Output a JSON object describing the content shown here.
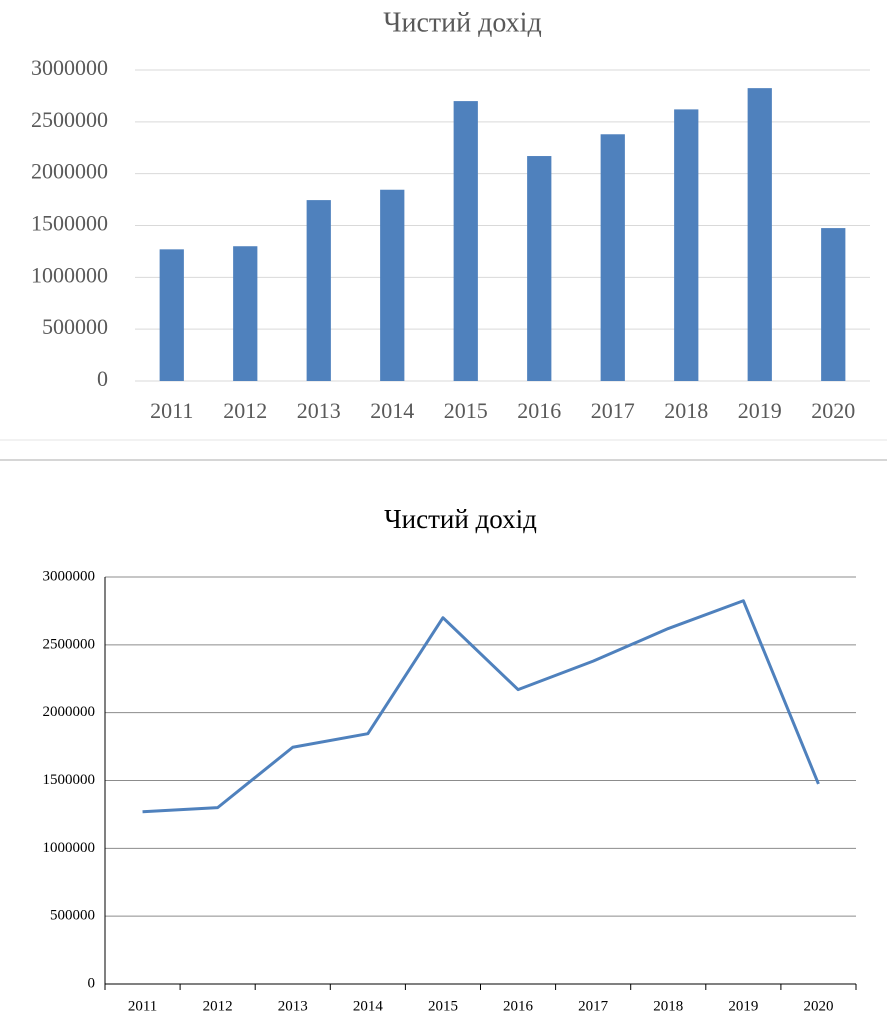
{
  "chart_data": [
    {
      "type": "bar",
      "title": "Чистий дохід",
      "categories": [
        "2011",
        "2012",
        "2013",
        "2014",
        "2015",
        "2016",
        "2017",
        "2018",
        "2019",
        "2020"
      ],
      "values": [
        1270000,
        1300000,
        1745000,
        1845000,
        2700000,
        2170000,
        2380000,
        2620000,
        2825000,
        1475000
      ],
      "color": "#4f81bd",
      "ylim": [
        0,
        3000000
      ],
      "yticks": [
        0,
        500000,
        1000000,
        1500000,
        2000000,
        2500000,
        3000000
      ],
      "grid": true
    },
    {
      "type": "line",
      "title": "Чистий дохід",
      "categories": [
        "2011",
        "2012",
        "2013",
        "2014",
        "2015",
        "2016",
        "2017",
        "2018",
        "2019",
        "2020"
      ],
      "values": [
        1270000,
        1300000,
        1745000,
        1845000,
        2700000,
        2170000,
        2380000,
        2620000,
        2825000,
        1475000
      ],
      "color": "#4f81bd",
      "ylim": [
        0,
        3000000
      ],
      "yticks": [
        0,
        500000,
        1000000,
        1500000,
        2000000,
        2500000,
        3000000
      ],
      "grid": true
    }
  ]
}
